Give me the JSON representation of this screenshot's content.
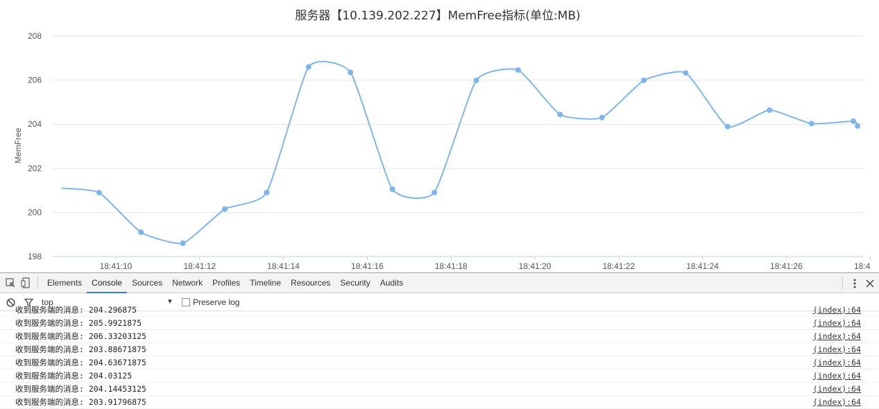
{
  "chart_data": {
    "type": "line",
    "title": "服务器【10.139.202.227】MemFree指标(单位:MB)",
    "ylabel": "MemFree",
    "xlabel": "",
    "ylim": [
      198,
      208
    ],
    "yticks": [
      "198",
      "200",
      "202",
      "204",
      "206",
      "208"
    ],
    "xticks": [
      "18:41:10",
      "18:41:12",
      "18:41:14",
      "18:41:16",
      "18:41:18",
      "18:41:20",
      "18:41:22",
      "18:41:24",
      "18:41:26",
      "18:4"
    ],
    "grid": true,
    "color": "#7eb5ec",
    "x": [
      "18:41:08.7",
      "18:41:09.6",
      "18:41:10.6",
      "18:41:11.6",
      "18:41:12.6",
      "18:41:13.6",
      "18:41:14.6",
      "18:41:15.6",
      "18:41:16.6",
      "18:41:17.6",
      "18:41:18.6",
      "18:41:19.6",
      "18:41:20.6",
      "18:41:21.6",
      "18:41:22.6",
      "18:41:23.6",
      "18:41:24.6",
      "18:41:25.6",
      "18:41:26.6",
      "18:41:27.6",
      "18:41:27.7"
    ],
    "values": [
      201.1,
      200.9,
      199.1,
      198.6,
      200.15,
      200.9,
      206.6,
      206.35,
      201.05,
      200.9,
      205.99,
      206.46,
      204.44,
      204.3,
      205.99,
      206.33,
      203.89,
      204.64,
      204.03,
      204.14,
      203.92
    ]
  },
  "devtools": {
    "tabs": [
      "Elements",
      "Console",
      "Sources",
      "Network",
      "Profiles",
      "Timeline",
      "Resources",
      "Security",
      "Audits"
    ],
    "active_tab": "Console",
    "context": "top",
    "preserve_log_label": "Preserve log",
    "messages": [
      {
        "text": "收到服务端的消息: 204.296875",
        "src": "(index):64"
      },
      {
        "text": "收到服务端的消息: 205.9921875",
        "src": "(index):64"
      },
      {
        "text": "收到服务端的消息: 206.33203125",
        "src": "(index):64"
      },
      {
        "text": "收到服务端的消息: 203.88671875",
        "src": "(index):64"
      },
      {
        "text": "收到服务端的消息: 204.63671875",
        "src": "(index):64"
      },
      {
        "text": "收到服务端的消息: 204.03125",
        "src": "(index):64"
      },
      {
        "text": "收到服务端的消息: 204.14453125",
        "src": "(index):64"
      },
      {
        "text": "收到服务端的消息: 203.91796875",
        "src": "(index):64"
      }
    ]
  }
}
